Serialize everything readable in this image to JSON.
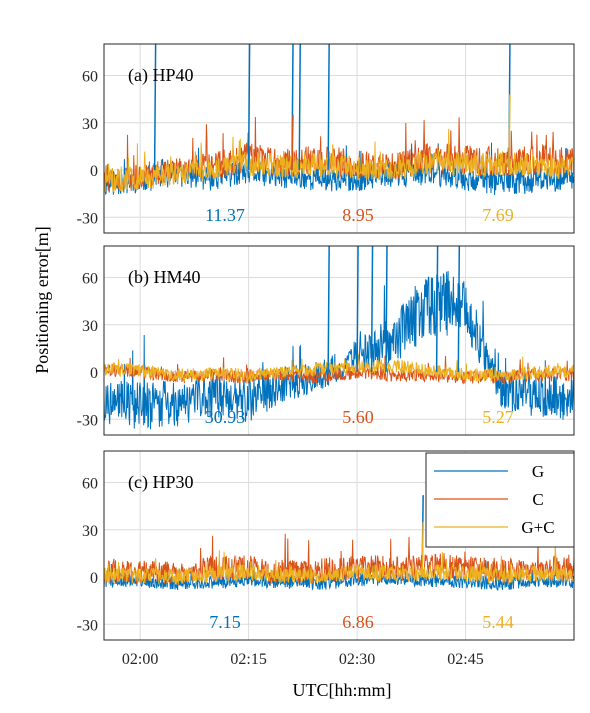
{
  "figure": {
    "ylabel": "Positioning error[m]",
    "xlabel": "UTC[hh:mm]",
    "x_tick_labels": [
      "02:00",
      "02:15",
      "02:30",
      "02:45"
    ],
    "y_tick_labels": [
      "60",
      "30",
      "0",
      "-30"
    ]
  },
  "legend": {
    "placement": "panel-c-top-right",
    "entries": [
      {
        "label": "G",
        "color": "#0072BD"
      },
      {
        "label": "C",
        "color": "#D95319"
      },
      {
        "label": "G+C",
        "color": "#EDB120"
      }
    ]
  },
  "chart_data": [
    {
      "type": "line",
      "panel_label": "(a) HP40",
      "xlim": [
        "01:55",
        "03:00"
      ],
      "ylim": [
        -40,
        80
      ],
      "grid": true,
      "x": [
        "01:55",
        "02:00",
        "02:05",
        "02:10",
        "02:15",
        "02:20",
        "02:25",
        "02:30",
        "02:35",
        "02:40",
        "02:45",
        "02:50",
        "02:55",
        "03:00"
      ],
      "series": [
        {
          "name": "G",
          "color": "#0072BD",
          "values": [
            -8,
            -6,
            -3,
            -5,
            -2,
            -4,
            -5,
            -6,
            -3,
            -2,
            -5,
            -8,
            -6,
            -5
          ]
        },
        {
          "name": "C",
          "color": "#D95319",
          "values": [
            -5,
            -4,
            0,
            3,
            8,
            5,
            6,
            4,
            2,
            8,
            6,
            5,
            7,
            5
          ]
        },
        {
          "name": "G+C",
          "color": "#EDB120",
          "values": [
            -6,
            -5,
            -2,
            0,
            4,
            2,
            3,
            1,
            0,
            5,
            3,
            4,
            3,
            1
          ]
        }
      ],
      "spikes": [
        {
          "series": "G",
          "x": "02:02",
          "y": 80
        },
        {
          "series": "G",
          "x": "02:15",
          "y": 80
        },
        {
          "series": "G",
          "x": "02:21",
          "y": 80
        },
        {
          "series": "G",
          "x": "02:22",
          "y": 80
        },
        {
          "series": "G",
          "x": "02:26",
          "y": 80
        },
        {
          "series": "G",
          "x": "02:51",
          "y": 80
        },
        {
          "series": "G+C",
          "x": "02:51",
          "y": 48
        },
        {
          "series": "C",
          "x": "02:21",
          "y": 35
        }
      ],
      "annotations": [
        {
          "text": "11.37",
          "series": "G",
          "color": "#0072BD"
        },
        {
          "text": "8.95",
          "series": "C",
          "color": "#D95319"
        },
        {
          "text": "7.69",
          "series": "G+C",
          "color": "#EDB120"
        }
      ]
    },
    {
      "type": "line",
      "panel_label": "(b) HM40",
      "xlim": [
        "01:55",
        "03:00"
      ],
      "ylim": [
        -40,
        80
      ],
      "grid": true,
      "x": [
        "01:55",
        "02:00",
        "02:05",
        "02:10",
        "02:15",
        "02:20",
        "02:25",
        "02:30",
        "02:35",
        "02:40",
        "02:45",
        "02:50",
        "02:55",
        "03:00"
      ],
      "series": [
        {
          "name": "G",
          "color": "#0072BD",
          "values": [
            -18,
            -22,
            -20,
            -15,
            -18,
            -8,
            -2,
            10,
            20,
            45,
            40,
            -12,
            -15,
            -18
          ]
        },
        {
          "name": "C",
          "color": "#D95319",
          "values": [
            2,
            0,
            -3,
            -2,
            -3,
            -2,
            -3,
            0,
            -2,
            -2,
            -3,
            -3,
            -2,
            -2
          ]
        },
        {
          "name": "G+C",
          "color": "#EDB120",
          "values": [
            2,
            1,
            -2,
            -1,
            -2,
            0,
            2,
            3,
            4,
            1,
            -2,
            -2,
            0,
            1
          ]
        }
      ],
      "spikes": [
        {
          "series": "G",
          "x": "02:26",
          "y": 80
        },
        {
          "series": "G",
          "x": "02:30",
          "y": 80
        },
        {
          "series": "G",
          "x": "02:32",
          "y": 80
        },
        {
          "series": "G",
          "x": "02:34",
          "y": 80
        },
        {
          "series": "G",
          "x": "02:41",
          "y": 80
        },
        {
          "series": "G",
          "x": "02:44",
          "y": 80
        }
      ],
      "annotations": [
        {
          "text": "30.93",
          "series": "G",
          "color": "#0072BD"
        },
        {
          "text": "5.60",
          "series": "C",
          "color": "#D95319"
        },
        {
          "text": "5.27",
          "series": "G+C",
          "color": "#EDB120"
        }
      ]
    },
    {
      "type": "line",
      "panel_label": "(c) HP30",
      "xlim": [
        "01:55",
        "03:00"
      ],
      "ylim": [
        -40,
        80
      ],
      "grid": true,
      "x": [
        "01:55",
        "02:00",
        "02:05",
        "02:10",
        "02:15",
        "02:20",
        "02:25",
        "02:30",
        "02:35",
        "02:40",
        "02:45",
        "02:50",
        "02:55",
        "03:00"
      ],
      "series": [
        {
          "name": "G",
          "color": "#0072BD",
          "values": [
            -3,
            -2,
            -4,
            -3,
            -2,
            -3,
            -4,
            -2,
            -1,
            -2,
            -3,
            -4,
            -2,
            -3
          ]
        },
        {
          "name": "C",
          "color": "#D95319",
          "values": [
            4,
            3,
            2,
            5,
            6,
            3,
            4,
            6,
            5,
            7,
            6,
            4,
            5,
            6
          ]
        },
        {
          "name": "G+C",
          "color": "#EDB120",
          "values": [
            1,
            1,
            0,
            2,
            3,
            1,
            1,
            3,
            2,
            3,
            2,
            1,
            2,
            2
          ]
        }
      ],
      "spikes": [
        {
          "series": "G",
          "x": "02:39",
          "y": 52
        },
        {
          "series": "G+C",
          "x": "02:39",
          "y": 35
        }
      ],
      "annotations": [
        {
          "text": "7.15",
          "series": "G",
          "color": "#0072BD"
        },
        {
          "text": "6.86",
          "series": "C",
          "color": "#D95319"
        },
        {
          "text": "5.44",
          "series": "G+C",
          "color": "#EDB120"
        }
      ]
    }
  ]
}
